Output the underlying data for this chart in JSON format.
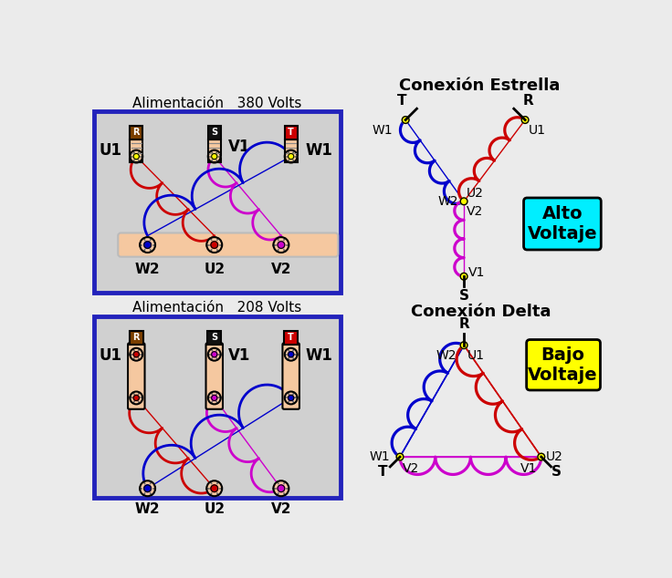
{
  "bg_color": "#ebebeb",
  "title_380": "Alimentación   380 Volts",
  "title_208": "Alimentación   208 Volts",
  "title_estrella": "Conexión Estrella",
  "title_delta": "Conexión Delta",
  "alto_voltaje": "Alto\nVoltaje",
  "bajo_voltaje": "Bajo\nVoltaje",
  "color_red": "#cc0000",
  "color_blue": "#0000cc",
  "color_magenta": "#cc00cc",
  "color_yellow": "#ffff00",
  "color_cyan": "#00eeff",
  "color_yellow_box": "#ffff00",
  "color_terminal_bg": "#f5c8a0",
  "color_panel_bg": "#d0d0d0",
  "color_panel_border": "#2222bb",
  "color_cap_brown": "#7B3F00",
  "color_cap_black": "#111111",
  "color_cap_red": "#cc0000",
  "color_bg_right": "#e8e8e8"
}
